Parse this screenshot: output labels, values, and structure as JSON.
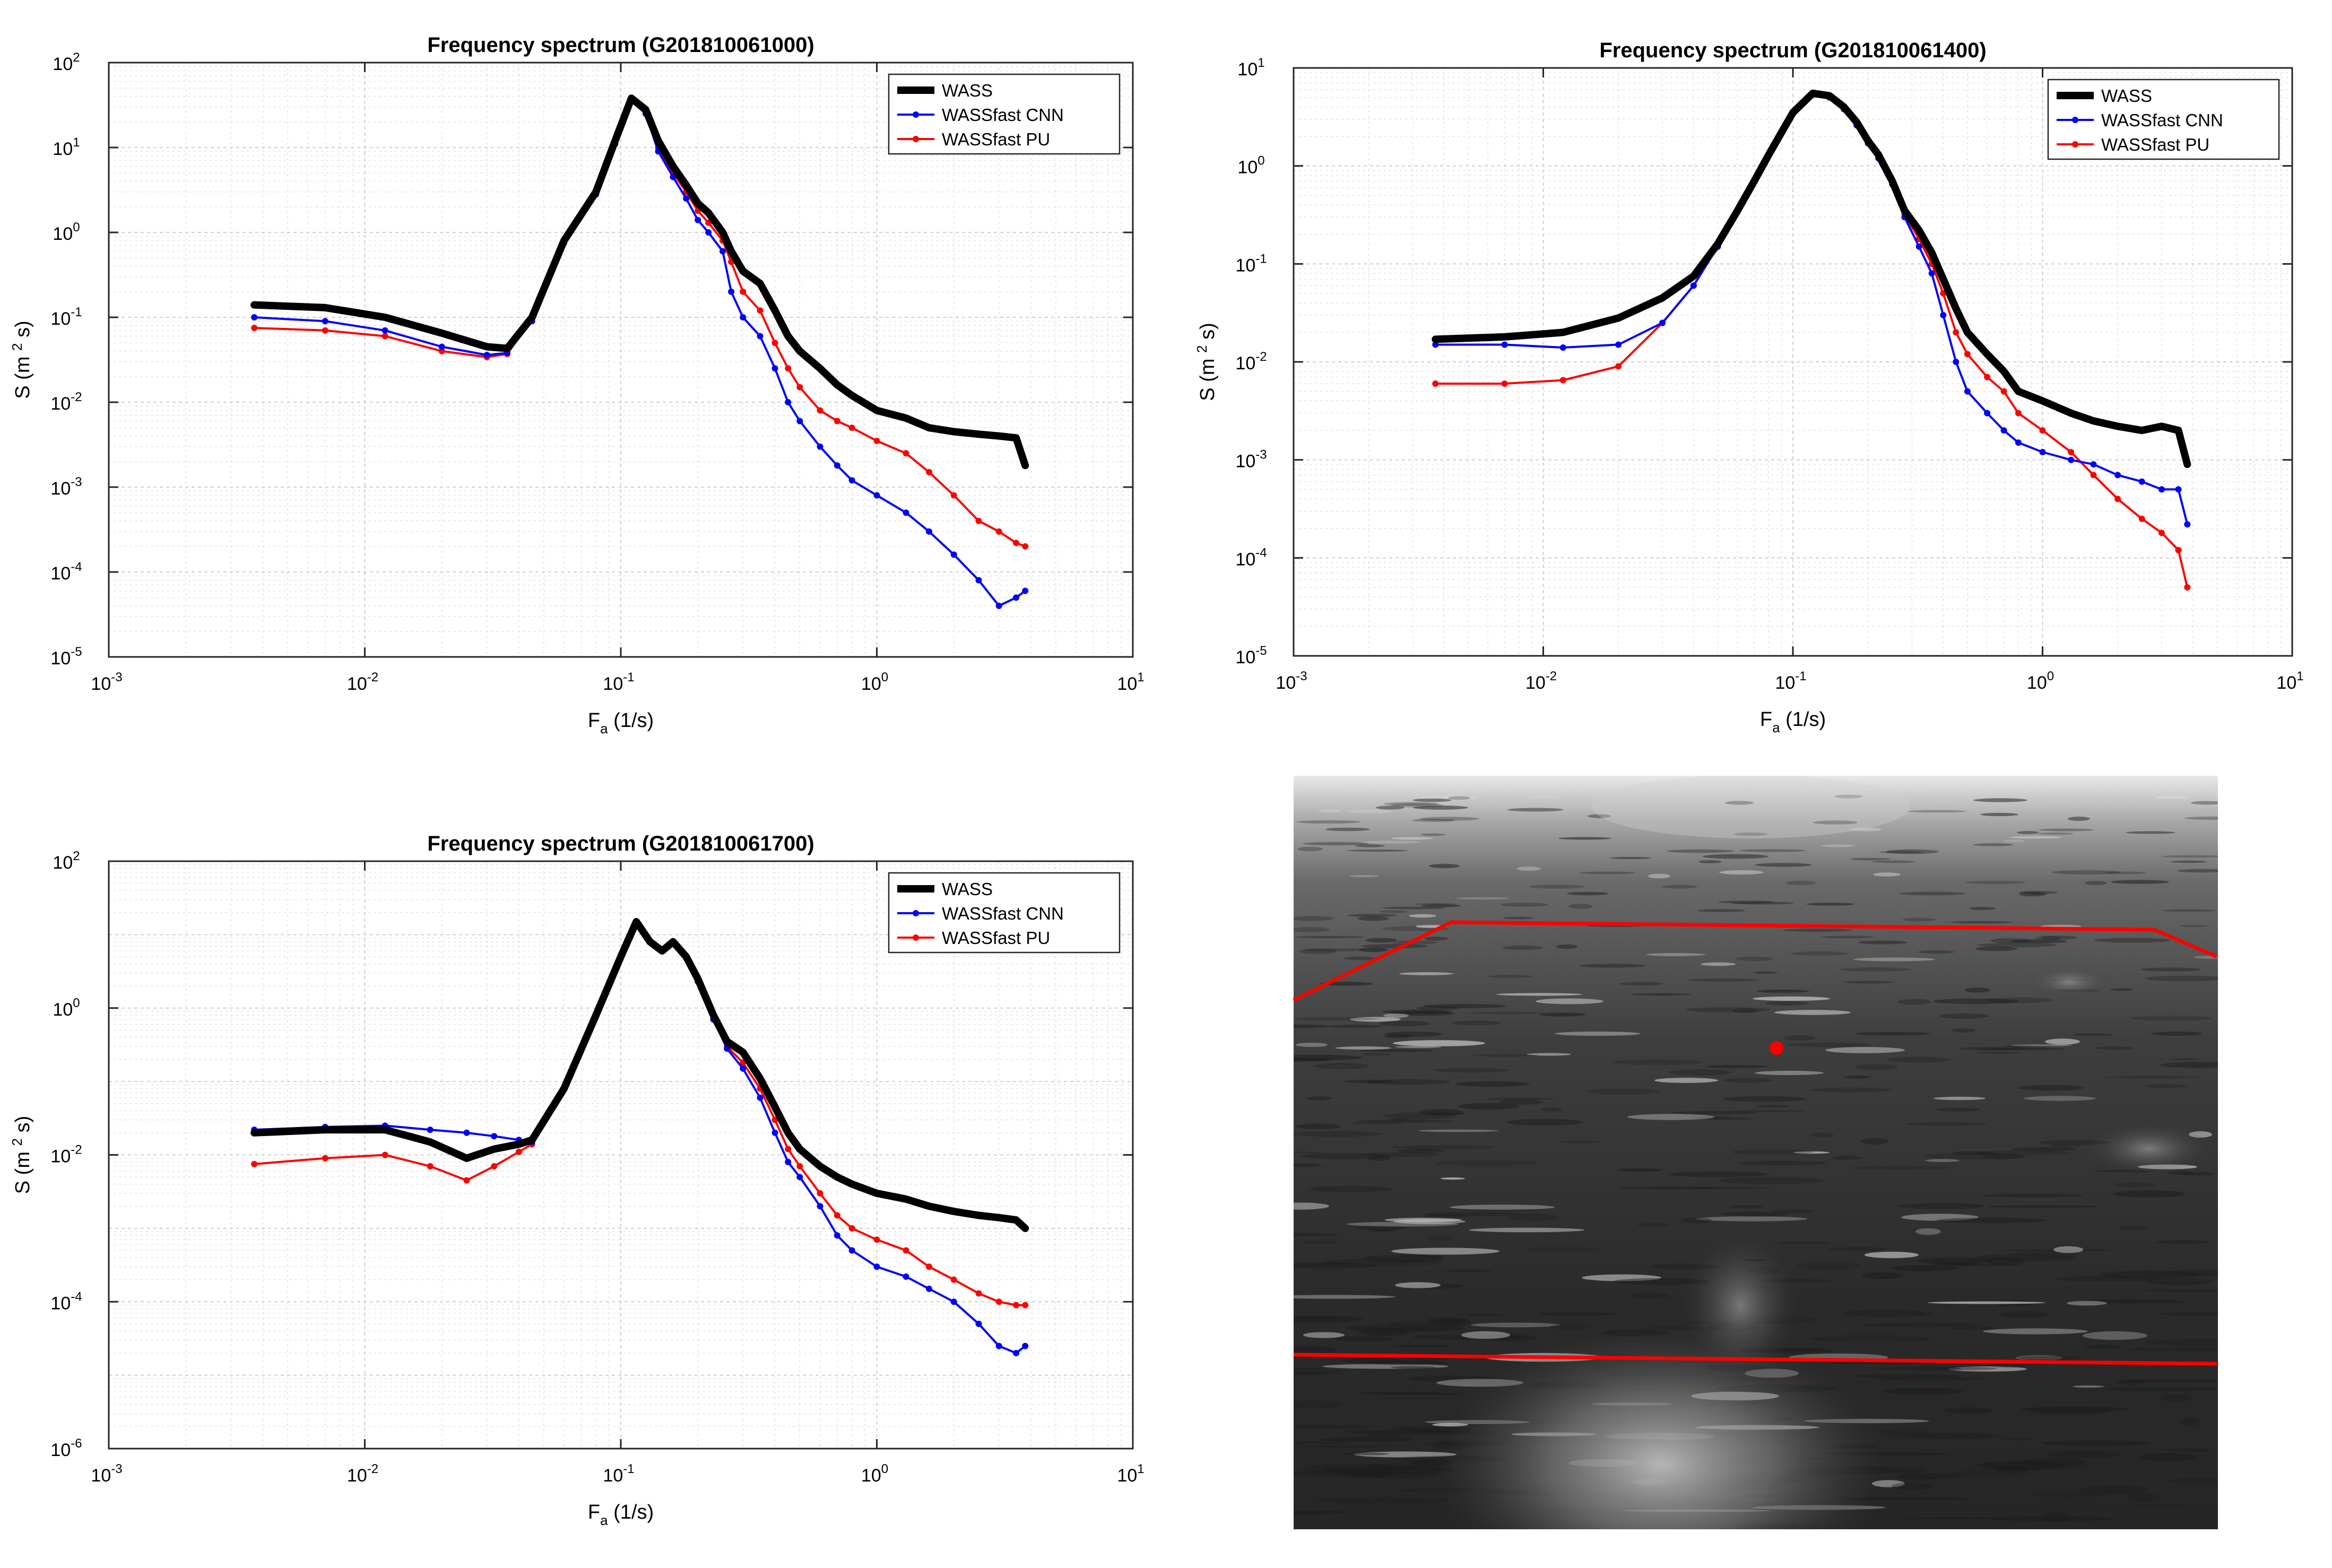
{
  "chart_data": [
    {
      "type": "line",
      "title": "Frequency spectrum (G201810061000)",
      "xlabel": "F",
      "xlabel_sub": "a",
      "xlabel_unit": "(1/s)",
      "ylabel_prefix": "S (m",
      "ylabel_exp": "2",
      "ylabel_suffix": " s)",
      "xscale": "log",
      "yscale": "log",
      "xlim_exp": [
        -3,
        1
      ],
      "ylim_exp": [
        -5,
        2
      ],
      "xticks": [
        {
          "base": "10",
          "exp": "-3"
        },
        {
          "base": "10",
          "exp": "-2"
        },
        {
          "base": "10",
          "exp": "-1"
        },
        {
          "base": "10",
          "exp": "0"
        },
        {
          "base": "10",
          "exp": "1"
        }
      ],
      "yticks": [
        {
          "base": "10",
          "exp": "-5"
        },
        {
          "base": "10",
          "exp": "-4"
        },
        {
          "base": "10",
          "exp": "-3"
        },
        {
          "base": "10",
          "exp": "-2"
        },
        {
          "base": "10",
          "exp": "-1"
        },
        {
          "base": "10",
          "exp": "0"
        },
        {
          "base": "10",
          "exp": "1"
        },
        {
          "base": "10",
          "exp": "2"
        }
      ],
      "grid": true,
      "legend_position": "top-right",
      "series": [
        {
          "name": "WASS",
          "color": "#000000",
          "style": "thick",
          "x": [
            0.0037,
            0.007,
            0.012,
            0.02,
            0.03,
            0.036,
            0.045,
            0.06,
            0.08,
            0.095,
            0.11,
            0.125,
            0.14,
            0.16,
            0.18,
            0.2,
            0.22,
            0.25,
            0.27,
            0.3,
            0.35,
            0.4,
            0.45,
            0.5,
            0.6,
            0.7,
            0.8,
            1.0,
            1.3,
            1.6,
            2.0,
            2.5,
            3.0,
            3.5,
            3.8
          ],
          "y": [
            0.14,
            0.13,
            0.1,
            0.065,
            0.045,
            0.043,
            0.1,
            0.8,
            3.0,
            12,
            38,
            28,
            12,
            6,
            3.6,
            2.2,
            1.7,
            1.0,
            0.6,
            0.35,
            0.25,
            0.12,
            0.06,
            0.04,
            0.025,
            0.016,
            0.012,
            0.008,
            0.0065,
            0.005,
            0.0045,
            0.0042,
            0.004,
            0.0038,
            0.0018
          ]
        },
        {
          "name": "WASSfast CNN",
          "color": "#0000ff",
          "style": "marker",
          "x": [
            0.0037,
            0.007,
            0.012,
            0.02,
            0.03,
            0.036,
            0.045,
            0.06,
            0.08,
            0.095,
            0.11,
            0.125,
            0.14,
            0.16,
            0.18,
            0.2,
            0.22,
            0.25,
            0.27,
            0.3,
            0.35,
            0.4,
            0.45,
            0.5,
            0.6,
            0.7,
            0.8,
            1.0,
            1.3,
            1.6,
            2.0,
            2.5,
            3.0,
            3.5,
            3.8
          ],
          "y": [
            0.1,
            0.09,
            0.07,
            0.045,
            0.036,
            0.038,
            0.09,
            0.75,
            2.8,
            11,
            35,
            25,
            9,
            4.5,
            2.5,
            1.4,
            1.0,
            0.6,
            0.2,
            0.1,
            0.06,
            0.025,
            0.01,
            0.006,
            0.003,
            0.0018,
            0.0012,
            0.0008,
            0.0005,
            0.0003,
            0.00016,
            8e-05,
            4e-05,
            5e-05,
            6e-05
          ]
        },
        {
          "name": "WASSfast PU",
          "color": "#ff0000",
          "style": "marker",
          "x": [
            0.0037,
            0.007,
            0.012,
            0.02,
            0.03,
            0.036,
            0.045,
            0.06,
            0.08,
            0.095,
            0.11,
            0.125,
            0.14,
            0.16,
            0.18,
            0.2,
            0.22,
            0.25,
            0.27,
            0.3,
            0.35,
            0.4,
            0.45,
            0.5,
            0.6,
            0.7,
            0.8,
            1.0,
            1.3,
            1.6,
            2.0,
            2.5,
            3.0,
            3.5,
            3.8
          ],
          "y": [
            0.075,
            0.07,
            0.06,
            0.04,
            0.034,
            0.037,
            0.095,
            0.78,
            2.9,
            11.5,
            36,
            27,
            10,
            5,
            3,
            1.8,
            1.3,
            0.8,
            0.45,
            0.2,
            0.12,
            0.05,
            0.025,
            0.015,
            0.008,
            0.006,
            0.005,
            0.0035,
            0.0025,
            0.0015,
            0.0008,
            0.0004,
            0.0003,
            0.00022,
            0.0002
          ]
        }
      ]
    },
    {
      "type": "line",
      "title": "Frequency spectrum (G201810061400)",
      "xlabel": "F",
      "xlabel_sub": "a",
      "xlabel_unit": "(1/s)",
      "ylabel_prefix": "S (m",
      "ylabel_exp": "2",
      "ylabel_suffix": " s)",
      "xscale": "log",
      "yscale": "log",
      "xlim_exp": [
        -3,
        1
      ],
      "ylim_exp": [
        -5,
        1
      ],
      "xticks": [
        {
          "base": "10",
          "exp": "-3"
        },
        {
          "base": "10",
          "exp": "-2"
        },
        {
          "base": "10",
          "exp": "-1"
        },
        {
          "base": "10",
          "exp": "0"
        },
        {
          "base": "10",
          "exp": "1"
        }
      ],
      "yticks": [
        {
          "base": "10",
          "exp": "-5"
        },
        {
          "base": "10",
          "exp": "-4"
        },
        {
          "base": "10",
          "exp": "-3"
        },
        {
          "base": "10",
          "exp": "-2"
        },
        {
          "base": "10",
          "exp": "-1"
        },
        {
          "base": "10",
          "exp": "0"
        },
        {
          "base": "10",
          "exp": "1"
        }
      ],
      "grid": true,
      "legend_position": "top-right",
      "series": [
        {
          "name": "WASS",
          "color": "#000000",
          "style": "thick",
          "x": [
            0.0037,
            0.007,
            0.012,
            0.02,
            0.03,
            0.04,
            0.05,
            0.06,
            0.07,
            0.08,
            0.1,
            0.12,
            0.14,
            0.16,
            0.18,
            0.2,
            0.22,
            0.25,
            0.28,
            0.32,
            0.36,
            0.4,
            0.45,
            0.5,
            0.6,
            0.7,
            0.8,
            1.0,
            1.3,
            1.6,
            2.0,
            2.5,
            3.0,
            3.5,
            3.8
          ],
          "y": [
            0.017,
            0.018,
            0.02,
            0.028,
            0.045,
            0.075,
            0.16,
            0.35,
            0.7,
            1.3,
            3.5,
            5.5,
            5.2,
            4.0,
            2.8,
            1.8,
            1.3,
            0.7,
            0.35,
            0.22,
            0.13,
            0.07,
            0.035,
            0.02,
            0.012,
            0.008,
            0.005,
            0.004,
            0.003,
            0.0025,
            0.0022,
            0.002,
            0.0022,
            0.002,
            0.0009
          ]
        },
        {
          "name": "WASSfast CNN",
          "color": "#0000ff",
          "style": "marker",
          "x": [
            0.0037,
            0.007,
            0.012,
            0.02,
            0.03,
            0.04,
            0.05,
            0.06,
            0.07,
            0.08,
            0.1,
            0.12,
            0.14,
            0.16,
            0.18,
            0.2,
            0.22,
            0.25,
            0.28,
            0.32,
            0.36,
            0.4,
            0.45,
            0.5,
            0.6,
            0.7,
            0.8,
            1.0,
            1.3,
            1.6,
            2.0,
            2.5,
            3.0,
            3.5,
            3.8
          ],
          "y": [
            0.015,
            0.015,
            0.014,
            0.015,
            0.025,
            0.06,
            0.15,
            0.35,
            0.7,
            1.3,
            3.5,
            5.3,
            5.0,
            3.8,
            2.6,
            1.7,
            1.2,
            0.65,
            0.3,
            0.15,
            0.08,
            0.03,
            0.01,
            0.005,
            0.003,
            0.002,
            0.0015,
            0.0012,
            0.001,
            0.0009,
            0.0007,
            0.0006,
            0.0005,
            0.0005,
            0.00022
          ]
        },
        {
          "name": "WASSfast PU",
          "color": "#ff0000",
          "style": "marker",
          "x": [
            0.0037,
            0.007,
            0.012,
            0.02,
            0.03,
            0.04,
            0.05,
            0.06,
            0.07,
            0.08,
            0.1,
            0.12,
            0.14,
            0.16,
            0.18,
            0.2,
            0.22,
            0.25,
            0.28,
            0.32,
            0.36,
            0.4,
            0.45,
            0.5,
            0.6,
            0.7,
            0.8,
            1.0,
            1.3,
            1.6,
            2.0,
            2.5,
            3.0,
            3.5,
            3.8
          ],
          "y": [
            0.006,
            0.006,
            0.0065,
            0.009,
            0.025,
            0.06,
            0.15,
            0.35,
            0.7,
            1.3,
            3.5,
            5.4,
            5.1,
            3.9,
            2.7,
            1.75,
            1.25,
            0.68,
            0.32,
            0.18,
            0.1,
            0.05,
            0.02,
            0.012,
            0.007,
            0.005,
            0.003,
            0.002,
            0.0012,
            0.0007,
            0.0004,
            0.00025,
            0.00018,
            0.00012,
            5e-05
          ]
        }
      ]
    },
    {
      "type": "line",
      "title": "Frequency spectrum (G201810061700)",
      "xlabel": "F",
      "xlabel_sub": "a",
      "xlabel_unit": "(1/s)",
      "ylabel_prefix": "S (m",
      "ylabel_exp": "2",
      "ylabel_suffix": " s)",
      "xscale": "log",
      "yscale": "log",
      "xlim_exp": [
        -3,
        1
      ],
      "ylim_exp": [
        -6,
        2
      ],
      "xticks": [
        {
          "base": "10",
          "exp": "-3"
        },
        {
          "base": "10",
          "exp": "-2"
        },
        {
          "base": "10",
          "exp": "-1"
        },
        {
          "base": "10",
          "exp": "0"
        },
        {
          "base": "10",
          "exp": "1"
        }
      ],
      "yticks": [
        {
          "base": "10",
          "exp": "-6"
        },
        {
          "base": "10",
          "exp": "-4"
        },
        {
          "base": "10",
          "exp": "-2"
        },
        {
          "base": "10",
          "exp": "0"
        },
        {
          "base": "10",
          "exp": "2"
        }
      ],
      "grid": true,
      "legend_position": "top-right",
      "series": [
        {
          "name": "WASS",
          "color": "#000000",
          "style": "thick",
          "x": [
            0.0037,
            0.007,
            0.012,
            0.018,
            0.025,
            0.032,
            0.04,
            0.045,
            0.06,
            0.08,
            0.1,
            0.115,
            0.13,
            0.145,
            0.16,
            0.18,
            0.2,
            0.23,
            0.26,
            0.3,
            0.35,
            0.4,
            0.45,
            0.5,
            0.6,
            0.7,
            0.8,
            1.0,
            1.3,
            1.6,
            2.0,
            2.5,
            3.0,
            3.5,
            3.8
          ],
          "y": [
            0.02,
            0.022,
            0.022,
            0.015,
            0.009,
            0.012,
            0.014,
            0.016,
            0.08,
            0.8,
            5.0,
            15,
            8,
            6,
            8,
            5,
            2.5,
            0.8,
            0.35,
            0.25,
            0.11,
            0.045,
            0.02,
            0.012,
            0.007,
            0.005,
            0.004,
            0.003,
            0.0025,
            0.002,
            0.0017,
            0.0015,
            0.0014,
            0.0013,
            0.001
          ]
        },
        {
          "name": "WASSfast CNN",
          "color": "#0000ff",
          "style": "marker",
          "x": [
            0.0037,
            0.007,
            0.012,
            0.018,
            0.025,
            0.032,
            0.04,
            0.045,
            0.06,
            0.08,
            0.1,
            0.115,
            0.13,
            0.145,
            0.16,
            0.18,
            0.2,
            0.23,
            0.26,
            0.3,
            0.35,
            0.4,
            0.45,
            0.5,
            0.6,
            0.7,
            0.8,
            1.0,
            1.3,
            1.6,
            2.0,
            2.5,
            3.0,
            3.5,
            3.8
          ],
          "y": [
            0.022,
            0.024,
            0.025,
            0.022,
            0.02,
            0.018,
            0.016,
            0.015,
            0.08,
            0.8,
            5.0,
            15,
            8,
            6,
            8,
            4.8,
            2.3,
            0.7,
            0.28,
            0.15,
            0.06,
            0.02,
            0.008,
            0.005,
            0.002,
            0.0008,
            0.0005,
            0.0003,
            0.00022,
            0.00015,
            0.0001,
            5e-05,
            2.5e-05,
            2e-05,
            2.5e-05
          ]
        },
        {
          "name": "WASSfast PU",
          "color": "#ff0000",
          "style": "marker",
          "x": [
            0.0037,
            0.007,
            0.012,
            0.018,
            0.025,
            0.032,
            0.04,
            0.045,
            0.06,
            0.08,
            0.1,
            0.115,
            0.13,
            0.145,
            0.16,
            0.18,
            0.2,
            0.23,
            0.26,
            0.3,
            0.35,
            0.4,
            0.45,
            0.5,
            0.6,
            0.7,
            0.8,
            1.0,
            1.3,
            1.6,
            2.0,
            2.5,
            3.0,
            3.5,
            3.8
          ],
          "y": [
            0.0075,
            0.009,
            0.01,
            0.007,
            0.0045,
            0.007,
            0.011,
            0.014,
            0.08,
            0.8,
            5.0,
            15,
            8,
            6,
            8,
            4.9,
            2.4,
            0.75,
            0.3,
            0.18,
            0.08,
            0.03,
            0.012,
            0.007,
            0.003,
            0.0015,
            0.001,
            0.0007,
            0.0005,
            0.0003,
            0.0002,
            0.00013,
            0.0001,
            9e-05,
            9e-05
          ]
        }
      ]
    }
  ],
  "image_panel": {
    "description_label": "sea-surface-camera-frame",
    "overlay_color": "#ff0000"
  }
}
